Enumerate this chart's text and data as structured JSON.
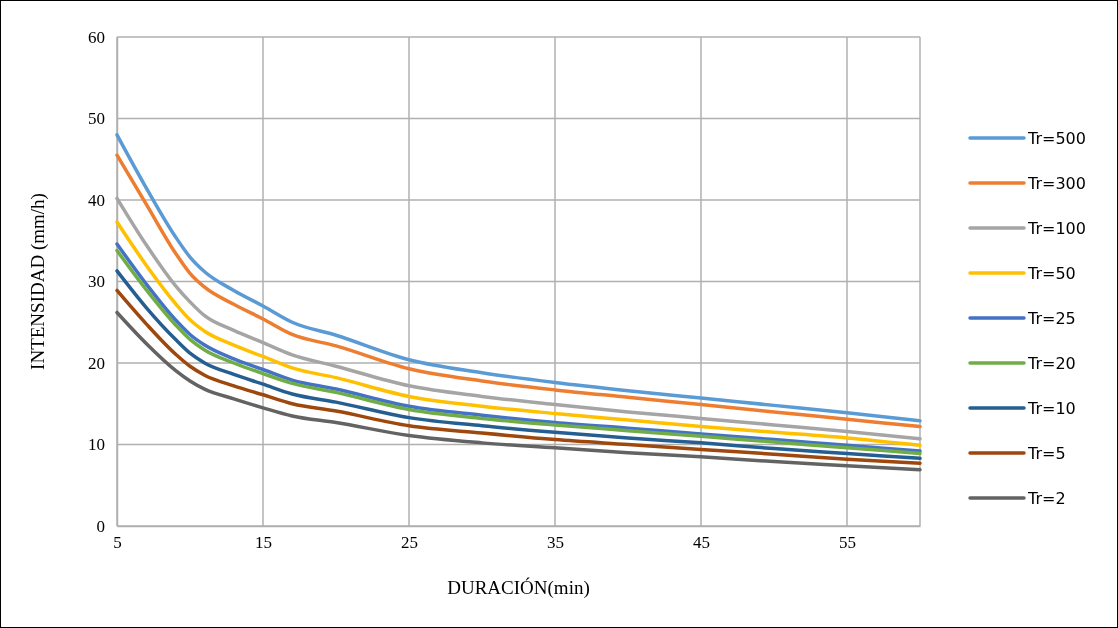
{
  "chart_data": {
    "type": "line",
    "xlabel": "DURACIÓN(min)",
    "ylabel": "INTENSIDAD (mm/h)",
    "x": [
      5,
      7,
      9,
      10,
      11,
      13,
      15,
      17,
      20,
      25,
      30,
      35,
      40,
      45,
      50,
      55,
      60
    ],
    "xlim": [
      5,
      60
    ],
    "xticks": [
      5,
      15,
      25,
      35,
      45,
      55
    ],
    "ylim": [
      0,
      60
    ],
    "yticks": [
      0,
      10,
      20,
      30,
      40,
      50,
      60
    ],
    "grid": true,
    "legend": "right",
    "marker": "none",
    "line_style": "solid",
    "series": [
      {
        "name": "Tr=500",
        "color": "#5b9bd5",
        "values": [
          48.0,
          41.5,
          35.5,
          33.0,
          31.2,
          28.9,
          27.0,
          25.0,
          23.4,
          20.4,
          18.8,
          17.6,
          16.6,
          15.7,
          14.8,
          13.9,
          12.9
        ]
      },
      {
        "name": "Tr=300",
        "color": "#ed7d31",
        "values": [
          45.5,
          39.5,
          33.5,
          31.0,
          29.3,
          27.2,
          25.4,
          23.5,
          22.1,
          19.3,
          17.8,
          16.7,
          15.8,
          14.9,
          14.0,
          13.1,
          12.2
        ]
      },
      {
        "name": "Tr=100",
        "color": "#a5a5a5",
        "values": [
          40.2,
          34.5,
          29.5,
          27.5,
          25.8,
          24.0,
          22.5,
          21.0,
          19.6,
          17.2,
          15.9,
          14.9,
          14.0,
          13.2,
          12.4,
          11.6,
          10.7
        ]
      },
      {
        "name": "Tr=50",
        "color": "#ffc000",
        "values": [
          37.3,
          32.0,
          27.3,
          25.3,
          23.9,
          22.2,
          20.8,
          19.4,
          18.2,
          15.9,
          14.7,
          13.8,
          13.0,
          12.2,
          11.5,
          10.8,
          9.9
        ]
      },
      {
        "name": "Tr=25",
        "color": "#4472c4",
        "values": [
          34.6,
          29.7,
          25.3,
          23.5,
          22.2,
          20.5,
          19.2,
          17.9,
          16.8,
          14.7,
          13.6,
          12.7,
          12.0,
          11.3,
          10.6,
          9.9,
          9.2
        ]
      },
      {
        "name": "Tr=20",
        "color": "#70ad47",
        "values": [
          33.8,
          29.0,
          24.7,
          22.9,
          21.6,
          20.0,
          18.7,
          17.5,
          16.4,
          14.3,
          13.2,
          12.4,
          11.7,
          11.0,
          10.3,
          9.6,
          8.9
        ]
      },
      {
        "name": "Tr=10",
        "color": "#255e91",
        "values": [
          31.3,
          26.8,
          22.9,
          21.2,
          20.0,
          18.6,
          17.4,
          16.2,
          15.2,
          13.3,
          12.3,
          11.5,
          10.8,
          10.2,
          9.5,
          8.9,
          8.3
        ]
      },
      {
        "name": "Tr=5",
        "color": "#9e480e",
        "values": [
          28.9,
          24.8,
          21.1,
          19.6,
          18.5,
          17.2,
          16.1,
          15.0,
          14.1,
          12.3,
          11.4,
          10.6,
          10.0,
          9.4,
          8.8,
          8.2,
          7.7
        ]
      },
      {
        "name": "Tr=2",
        "color": "#636363",
        "values": [
          26.2,
          22.4,
          19.1,
          17.8,
          16.8,
          15.6,
          14.5,
          13.5,
          12.7,
          11.1,
          10.2,
          9.6,
          9.0,
          8.5,
          7.9,
          7.4,
          6.9
        ]
      }
    ]
  }
}
